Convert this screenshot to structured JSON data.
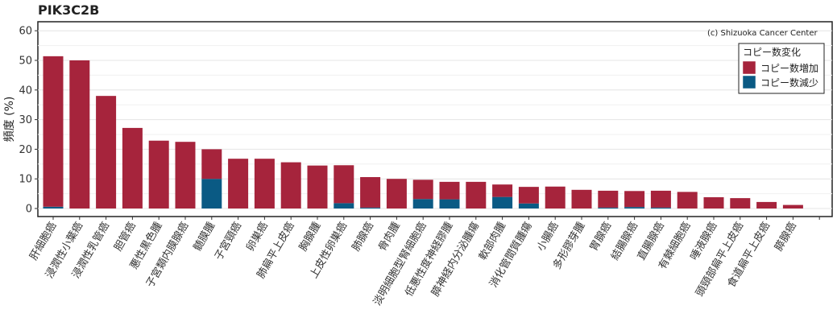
{
  "chart_data": {
    "type": "bar",
    "title": "PIK3C2B",
    "ylabel": "頻度 (%)",
    "xlabel": "",
    "credit": "(c) Shizuoka Cancer Center",
    "ylim": [
      -2,
      62
    ],
    "yticks": [
      0,
      10,
      20,
      30,
      40,
      50,
      60
    ],
    "grid": true,
    "legend_position": "top-right",
    "legend_title": "コピー数変化",
    "stacked": true,
    "categories": [
      "肝細胞癌",
      "浸潤性小葉癌",
      "浸潤性乳管癌",
      "胆管癌",
      "悪性黒色腫",
      "子宮類内膜腺癌",
      "髄膜腫",
      "子宮頸癌",
      "卵巣癌",
      "肺扁平上皮癌",
      "胸腺腫",
      "上皮性卵巣癌",
      "肺腺癌",
      "骨肉腫",
      "淡明細胞型腎細胞癌",
      "低悪性度神経膠腫",
      "膵神経内分泌腫瘍",
      "軟部肉腫",
      "消化管間質腫瘍",
      "小腸癌",
      "多形膠芽腫",
      "胃腺癌",
      "結腸腺癌",
      "直腸腺癌",
      "有棘細胞癌",
      "唾液腺癌",
      "頭頸部扁平上皮癌",
      "食道扁平上皮癌",
      "膵腺癌"
    ],
    "series": [
      {
        "name": "コピー数増加",
        "color": "#a6243c",
        "values": [
          50.8,
          50.0,
          38.0,
          27.2,
          22.9,
          22.5,
          10.0,
          16.8,
          16.8,
          15.6,
          14.5,
          12.8,
          10.3,
          10.0,
          6.5,
          5.9,
          9.0,
          4.2,
          5.6,
          7.4,
          6.3,
          5.7,
          5.4,
          5.7,
          5.6,
          3.8,
          3.5,
          2.2,
          1.2
        ]
      },
      {
        "name": "コピー数減少",
        "color": "#0a5a84",
        "values": [
          0.6,
          0.0,
          0.0,
          0.0,
          0.0,
          0.0,
          10.0,
          0.0,
          0.0,
          0.0,
          0.0,
          1.8,
          0.3,
          0.0,
          3.2,
          3.1,
          0.0,
          3.9,
          1.7,
          0.0,
          0.0,
          0.3,
          0.5,
          0.3,
          0.0,
          0.0,
          0.0,
          0.0,
          0.0
        ]
      }
    ]
  }
}
